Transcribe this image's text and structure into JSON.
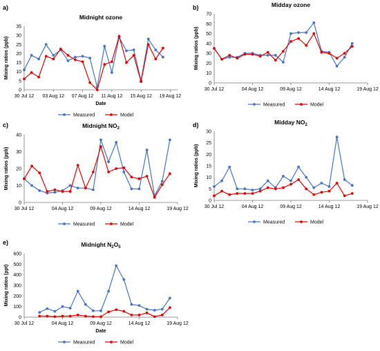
{
  "colors": {
    "measured": "#4472C4",
    "model": "#E00000",
    "axis": "#777777"
  },
  "chart_data": [
    {
      "panel": "a)",
      "title": "Midnight ozone",
      "title_sub": "",
      "title_after": "",
      "type": "line",
      "xlabel": "Date",
      "ylabel": "Mixing ratios (ppb)",
      "xlim": [
        0,
        21
      ],
      "ylim": [
        0,
        35
      ],
      "yticks": [
        0,
        5,
        10,
        15,
        20,
        25,
        30,
        35
      ],
      "xticks": [
        {
          "x": 0,
          "label": "30 Jul 12"
        },
        {
          "x": 4,
          "label": "03 Aug 12"
        },
        {
          "x": 8,
          "label": "07 Aug 12"
        },
        {
          "x": 12,
          "label": "11 Aug 12"
        },
        {
          "x": 16,
          "label": "15 Aug 12"
        },
        {
          "x": 20,
          "label": "19 Aug 12"
        }
      ],
      "series": [
        {
          "name": "Measured",
          "x": [
            0,
            1,
            2,
            3,
            4,
            5,
            6,
            7,
            8,
            9,
            10,
            11,
            12,
            13,
            14,
            15,
            16,
            17,
            18,
            19
          ],
          "values": [
            11,
            19,
            17,
            25,
            19,
            22,
            16,
            18,
            18.5,
            17.5,
            1.5,
            24,
            9.5,
            29,
            21.5,
            22,
            5,
            28,
            22,
            18
          ]
        },
        {
          "name": "Model",
          "x": [
            0,
            1,
            2,
            3,
            4,
            5,
            6,
            7,
            8,
            9,
            10,
            11,
            12,
            13,
            14,
            15,
            16,
            17,
            18,
            19
          ],
          "values": [
            6,
            9.5,
            7,
            18.5,
            17,
            22.5,
            19,
            16.5,
            15.5,
            4,
            0,
            14,
            15.5,
            29.5,
            15,
            19,
            4.5,
            25,
            17,
            23
          ]
        }
      ],
      "legend": [
        "Measured",
        "Model"
      ]
    },
    {
      "panel": "b)",
      "title": "Midday ozone",
      "title_sub": "",
      "title_after": "",
      "type": "line",
      "xlabel": "",
      "ylabel": "Mixing ratios (ppb)",
      "xlim": [
        0,
        20
      ],
      "ylim": [
        0,
        70
      ],
      "yticks": [
        0,
        10,
        20,
        30,
        40,
        50,
        60,
        70
      ],
      "xticks": [
        {
          "x": 0,
          "label": "30 Jul 12"
        },
        {
          "x": 5,
          "label": "04 Aug 12"
        },
        {
          "x": 10,
          "label": "09 Aug 12"
        },
        {
          "x": 15,
          "label": "14 Aug 12"
        },
        {
          "x": 20,
          "label": "19 Aug 12"
        }
      ],
      "series": [
        {
          "name": "Measured",
          "x": [
            0,
            1,
            2,
            3,
            4,
            5,
            6,
            7,
            8,
            9,
            10,
            11,
            12,
            13,
            14,
            15,
            16,
            17,
            18
          ],
          "values": [
            35,
            24,
            26,
            26,
            30,
            30,
            28,
            28,
            28,
            21,
            50,
            51,
            51,
            61,
            32,
            31,
            17,
            26,
            40
          ]
        },
        {
          "name": "Model",
          "x": [
            0,
            1,
            2,
            3,
            4,
            5,
            6,
            7,
            8,
            9,
            10,
            11,
            12,
            13,
            14,
            15,
            16,
            17,
            18
          ],
          "values": [
            35,
            24,
            28,
            25,
            29,
            29,
            27,
            31,
            23,
            32,
            42,
            45,
            38,
            50,
            31,
            30,
            25,
            30,
            37
          ]
        }
      ],
      "legend": [
        "Measured",
        "Model"
      ]
    },
    {
      "panel": "c)",
      "title": "Midnight NO",
      "title_sub": "2",
      "title_after": "",
      "type": "line",
      "xlabel": "",
      "ylabel": "Mixing ratios (ppb)",
      "xlim": [
        0,
        20
      ],
      "ylim": [
        0,
        40
      ],
      "yticks": [
        0,
        10,
        20,
        30,
        40
      ],
      "xticks": [
        {
          "x": 0,
          "label": "30 Jul 12"
        },
        {
          "x": 5,
          "label": "04 Aug 12"
        },
        {
          "x": 10,
          "label": "09 Aug 12"
        },
        {
          "x": 15,
          "label": "14 Aug 12"
        },
        {
          "x": 20,
          "label": "19 Aug 12"
        }
      ],
      "series": [
        {
          "name": "Measured",
          "x": [
            0,
            1,
            2,
            3,
            4,
            5,
            6,
            7,
            8,
            9,
            10,
            11,
            12,
            13,
            14,
            15,
            16,
            17,
            18,
            19
          ],
          "values": [
            14,
            10,
            7,
            5.5,
            6,
            7,
            10,
            8.5,
            8.5,
            7.5,
            37,
            24,
            35.5,
            18,
            8,
            8,
            31,
            4,
            12.5,
            37
          ]
        },
        {
          "name": "Model",
          "x": [
            0,
            1,
            2,
            3,
            4,
            5,
            6,
            7,
            8,
            9,
            10,
            11,
            12,
            13,
            14,
            15,
            16,
            17,
            18,
            19
          ],
          "values": [
            14,
            21.5,
            17.5,
            6.5,
            7.5,
            6.5,
            6.5,
            22,
            8.5,
            18,
            33,
            18,
            20,
            20.5,
            15,
            14,
            15.5,
            3,
            10.5,
            17
          ]
        }
      ],
      "legend": [
        "Measured",
        "Model"
      ]
    },
    {
      "panel": "d)",
      "title": "Midday NO",
      "title_sub": "2",
      "title_after": "",
      "type": "line",
      "xlabel": "",
      "ylabel": "Mixing ratios (ppb)",
      "xlim": [
        0,
        20
      ],
      "ylim": [
        0,
        30
      ],
      "yticks": [
        0,
        5,
        10,
        15,
        20,
        25,
        30
      ],
      "xticks": [
        {
          "x": 0,
          "label": "30 Jul 12"
        },
        {
          "x": 5,
          "label": "04 Aug 12"
        },
        {
          "x": 10,
          "label": "09 Aug 12"
        },
        {
          "x": 15,
          "label": "14 Aug 12"
        },
        {
          "x": 20,
          "label": "19 Aug 12"
        }
      ],
      "series": [
        {
          "name": "Measured",
          "x": [
            0,
            1,
            2,
            3,
            4,
            5,
            6,
            7,
            8,
            9,
            10,
            11,
            12,
            13,
            14,
            15,
            16,
            17,
            18
          ],
          "values": [
            6,
            8.5,
            14.5,
            5,
            5,
            4.5,
            5,
            8.5,
            5.5,
            10.5,
            8.5,
            14.5,
            10,
            5.5,
            7.5,
            6,
            27.5,
            9,
            6.5
          ]
        },
        {
          "name": "Model",
          "x": [
            0,
            1,
            2,
            3,
            4,
            5,
            6,
            7,
            8,
            9,
            10,
            11,
            12,
            13,
            14,
            15,
            16,
            17,
            18
          ],
          "values": [
            2,
            4,
            2.5,
            3,
            3,
            3,
            4,
            5.5,
            5,
            5.5,
            7,
            9,
            5,
            2.5,
            3.5,
            4,
            7.5,
            2,
            3
          ]
        }
      ],
      "legend": [
        "Measured",
        "Model"
      ]
    },
    {
      "panel": "e)",
      "title": "Midnight N",
      "title_sub": "2",
      "title_after": "O",
      "title_sub2": "5",
      "type": "line",
      "xlabel": "Date",
      "ylabel": "Mixing ratios (ppt)",
      "xlim": [
        0,
        20
      ],
      "ylim": [
        0,
        600
      ],
      "yticks": [
        0,
        100,
        200,
        300,
        400,
        500,
        600
      ],
      "xticks": [
        {
          "x": 0,
          "label": "30 Jul 12"
        },
        {
          "x": 5,
          "label": "04 Aug 12"
        },
        {
          "x": 10,
          "label": "09 Aug 12"
        },
        {
          "x": 15,
          "label": "14 Aug 12"
        },
        {
          "x": 20,
          "label": "19 Aug 12"
        }
      ],
      "series": [
        {
          "name": "Measured",
          "x": [
            2,
            3,
            4,
            5,
            6,
            7,
            8,
            9,
            10,
            11,
            12,
            13,
            14,
            15,
            16,
            17,
            18,
            19
          ],
          "values": [
            45,
            80,
            55,
            100,
            85,
            245,
            120,
            60,
            60,
            245,
            485,
            355,
            120,
            110,
            75,
            65,
            75,
            180
          ]
        },
        {
          "name": "Model",
          "x": [
            2,
            3,
            4,
            5,
            6,
            7,
            8,
            9,
            10,
            11,
            12,
            13,
            14,
            15,
            16,
            17,
            18,
            19
          ],
          "values": [
            10,
            10,
            5,
            10,
            10,
            20,
            10,
            5,
            5,
            50,
            70,
            55,
            20,
            20,
            40,
            5,
            20,
            90
          ]
        }
      ],
      "legend": [
        "Measured",
        "Model"
      ]
    }
  ]
}
